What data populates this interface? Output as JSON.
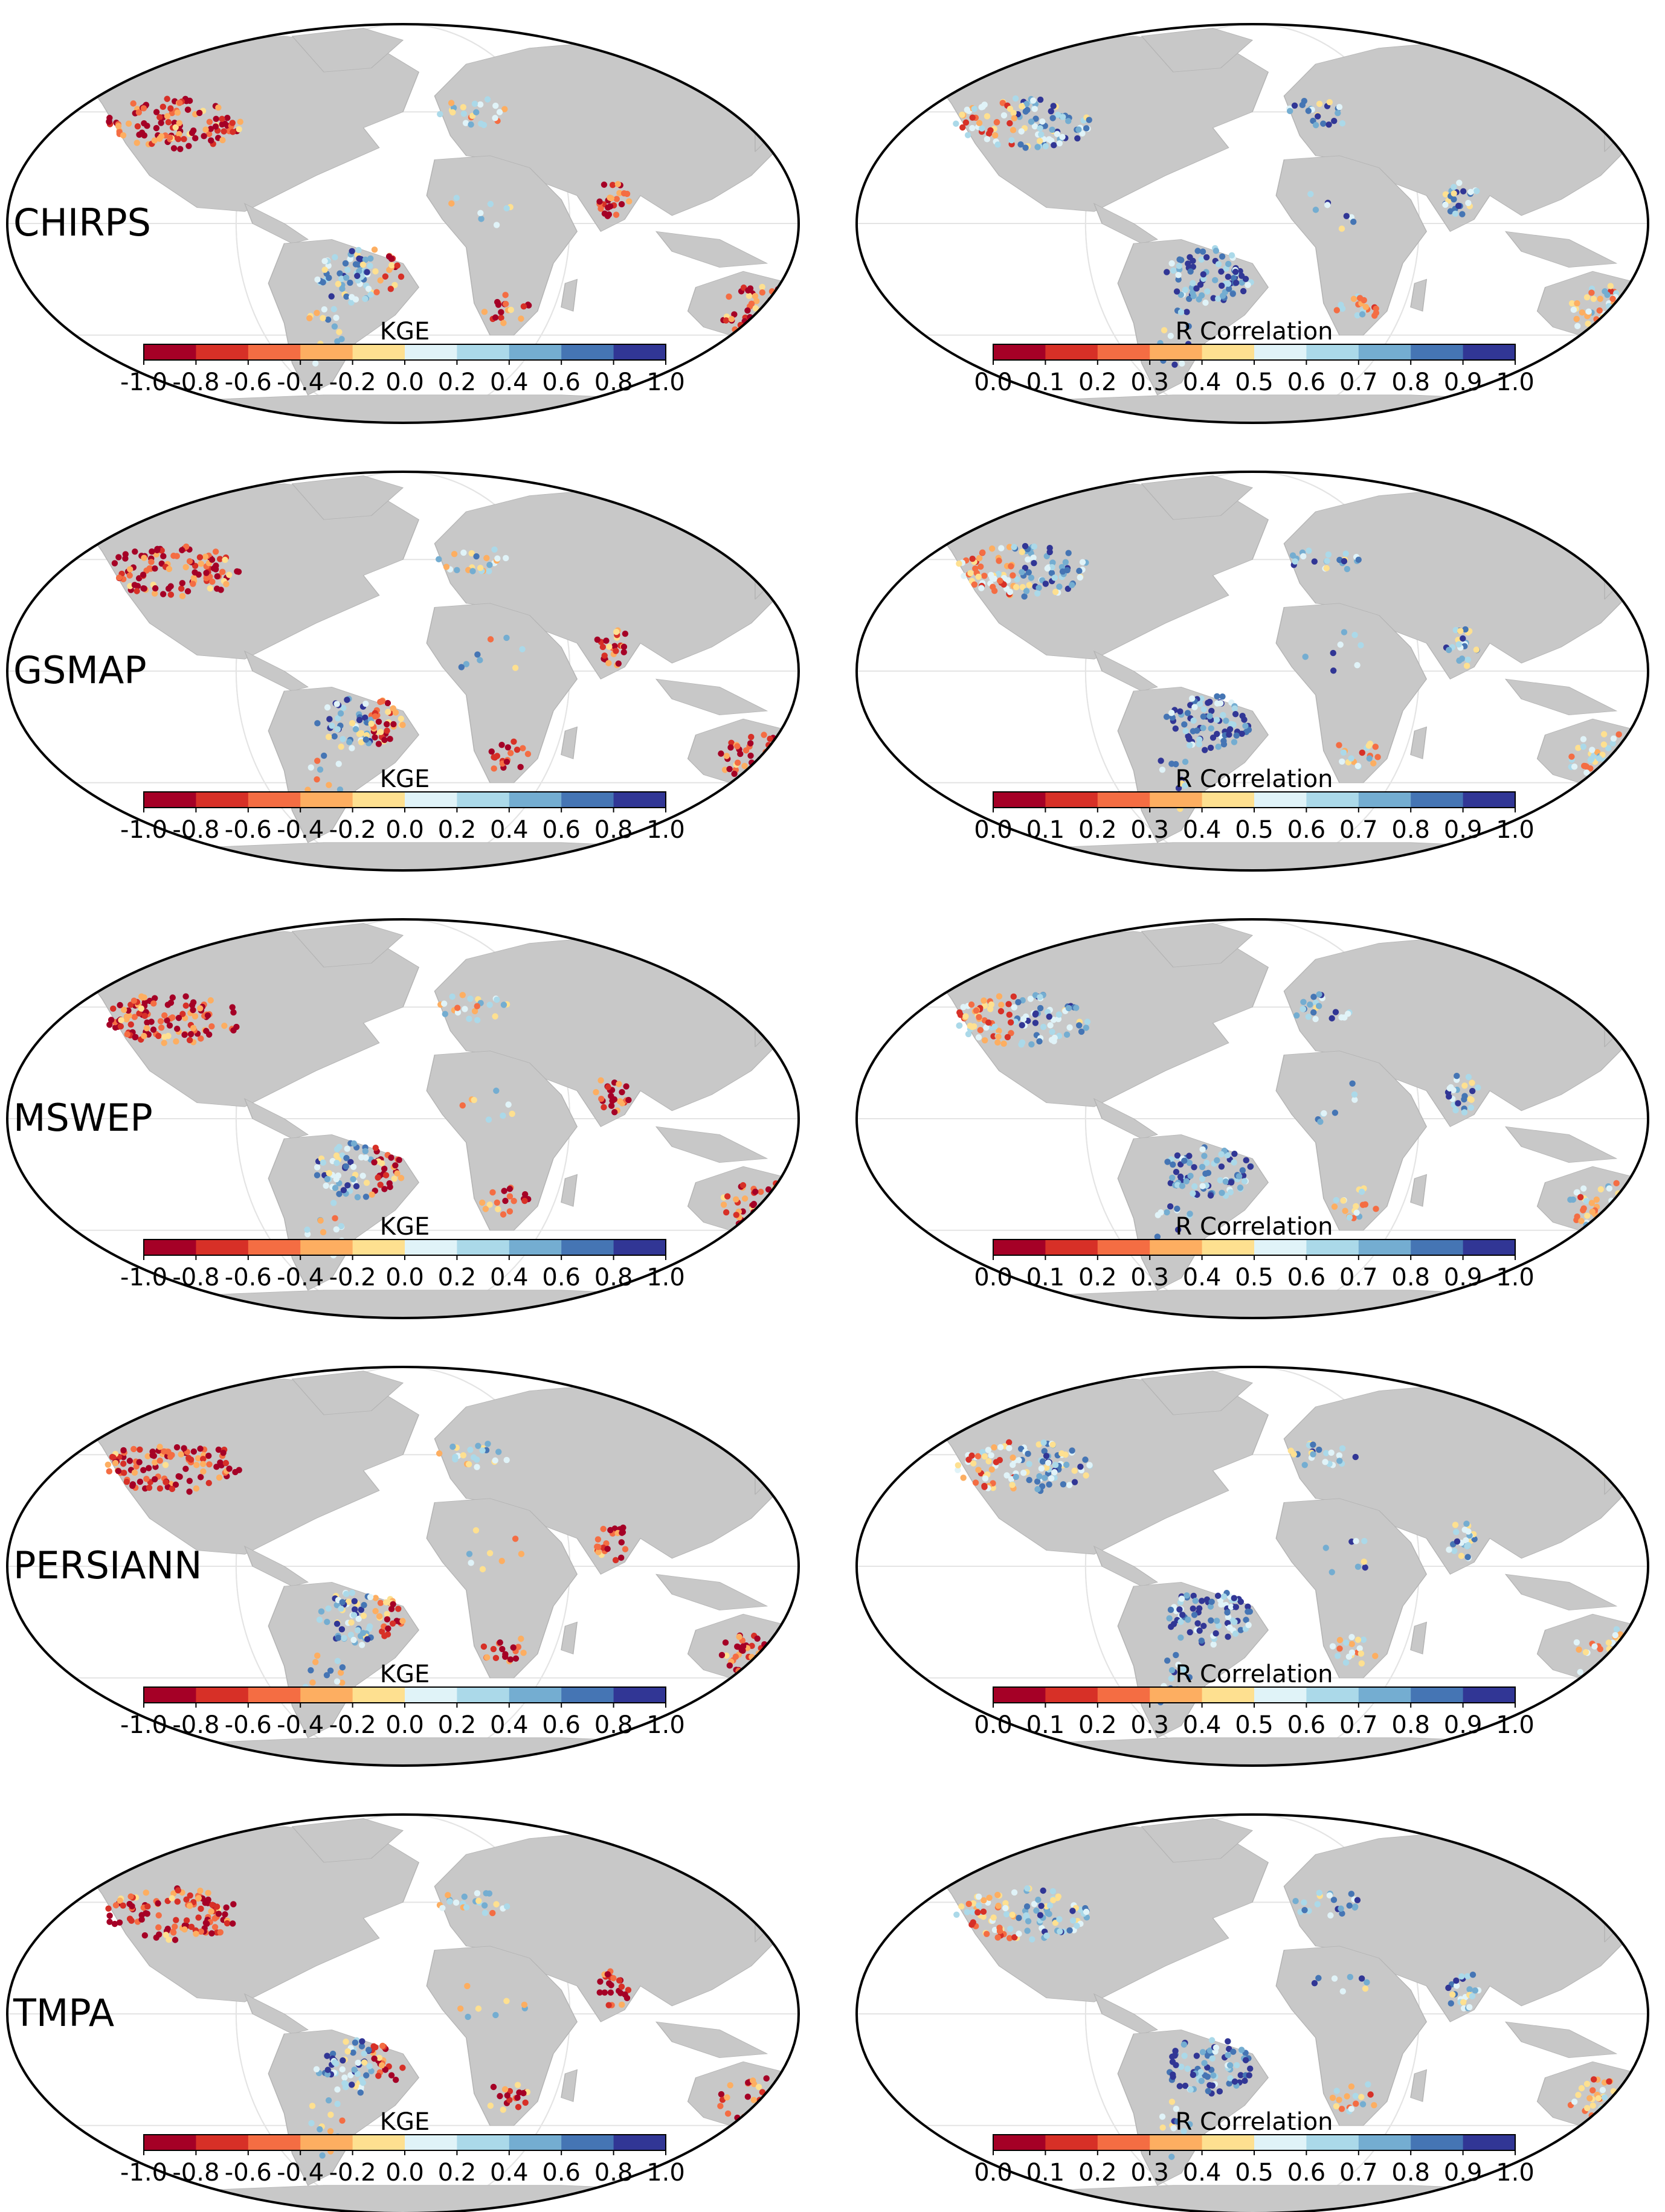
{
  "figure": {
    "rows": [
      {
        "dataset": "CHIRPS"
      },
      {
        "dataset": "GSMAP"
      },
      {
        "dataset": "MSWEP"
      },
      {
        "dataset": "PERSIANN"
      },
      {
        "dataset": "TMPA"
      }
    ],
    "colorbars": {
      "kge": {
        "label": "KGE",
        "ticks": [
          "-1.0",
          "-0.8",
          "-0.6",
          "-0.4",
          "-0.2",
          "0.0",
          "0.2",
          "0.4",
          "0.6",
          "0.8",
          "1.0"
        ]
      },
      "r": {
        "label": "R Correlation",
        "ticks": [
          "0.0",
          "0.1",
          "0.2",
          "0.3",
          "0.4",
          "0.5",
          "0.6",
          "0.7",
          "0.8",
          "0.9",
          "1.0"
        ]
      }
    },
    "palette": [
      "#a50026",
      "#d73027",
      "#f46d43",
      "#fdae61",
      "#fee090",
      "#e0f3f8",
      "#abd9e9",
      "#74add1",
      "#4575b4",
      "#313695"
    ],
    "colors": {
      "land": "#c8c8c8",
      "ocean": "#ffffff",
      "border": "#000000",
      "graticule": "#e4e4e4"
    }
  }
}
